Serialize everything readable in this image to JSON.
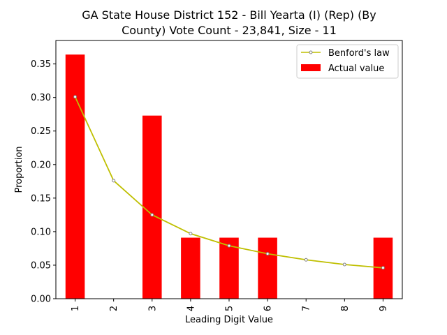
{
  "chart_data": {
    "type": "bar",
    "title_line1": "GA State House District 152 - Bill Yearta (I) (Rep) (By",
    "title_line2": "County) Vote Count - 23,841, Size - 11",
    "xlabel": "Leading Digit Value",
    "ylabel": "Proportion",
    "categories": [
      "1",
      "2",
      "3",
      "4",
      "5",
      "6",
      "7",
      "8",
      "9"
    ],
    "ylim": [
      0,
      0.385
    ],
    "yticks": [
      "0.00",
      "0.05",
      "0.10",
      "0.15",
      "0.20",
      "0.25",
      "0.30",
      "0.35"
    ],
    "series": [
      {
        "name": "Actual value",
        "kind": "bar",
        "color": "#ff0000",
        "values": [
          0.364,
          0.0,
          0.273,
          0.091,
          0.091,
          0.091,
          0.0,
          0.0,
          0.091
        ]
      },
      {
        "name": "Benford's law",
        "kind": "line",
        "color": "#bfbf00",
        "values": [
          0.301,
          0.176,
          0.125,
          0.097,
          0.079,
          0.067,
          0.058,
          0.051,
          0.046
        ]
      }
    ],
    "legend_position": "top-right",
    "grid": false
  }
}
